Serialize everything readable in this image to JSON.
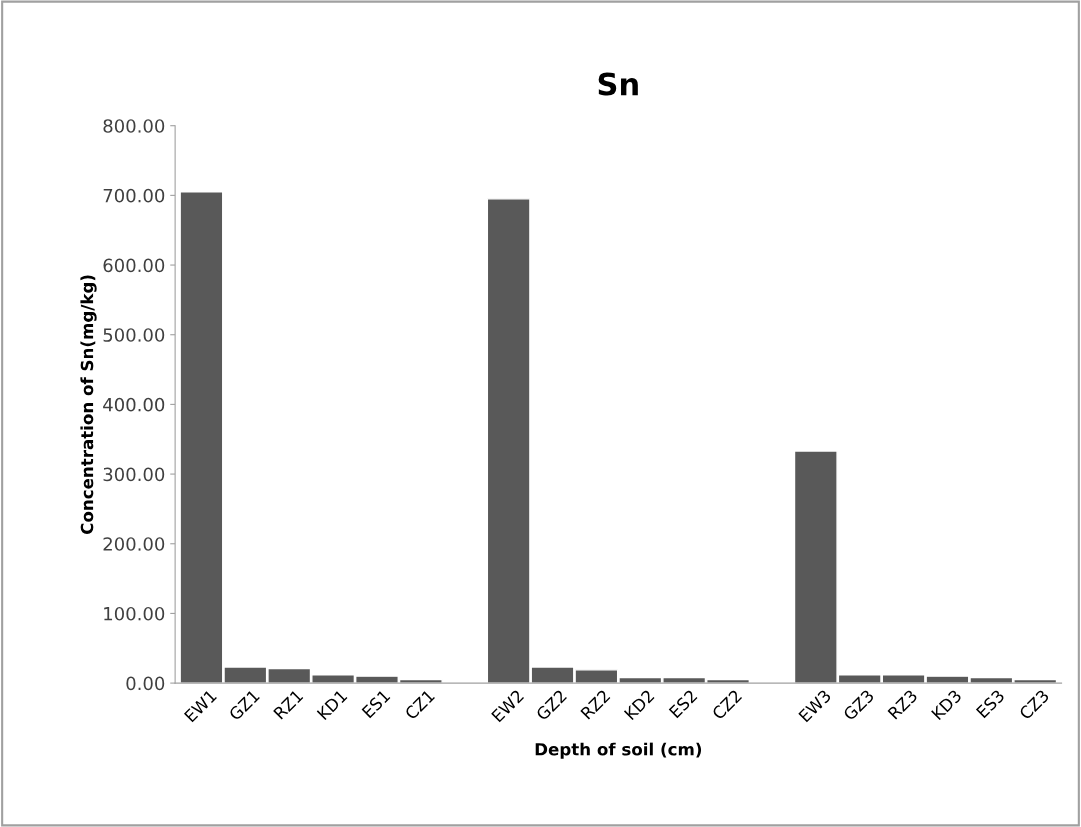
{
  "chart_data": {
    "type": "bar",
    "title": "Sn",
    "xlabel": "Depth of soil (cm)",
    "ylabel": "Concentration of Sn(mg/kg)",
    "categories": [
      "EW1",
      "GZ1",
      "RZ1",
      "KD1",
      "ES1",
      "CZ1",
      null,
      "EW2",
      "GZ2",
      "RZ2",
      "KD2",
      "ES2",
      "CZ2",
      null,
      "EW3",
      "GZ3",
      "RZ3",
      "KD3",
      "ES3",
      "CZ3"
    ],
    "values": [
      705,
      23,
      21,
      12,
      10,
      5,
      null,
      695,
      23,
      19,
      8,
      8,
      5,
      null,
      333,
      12,
      12,
      10,
      8,
      5
    ],
    "color": "#595959",
    "ylim": [
      0,
      800
    ],
    "yticks": [
      {
        "value": 0,
        "label": "0.00"
      },
      {
        "value": 100,
        "label": "100.00"
      },
      {
        "value": 200,
        "label": "200.00"
      },
      {
        "value": 300,
        "label": "300.00"
      },
      {
        "value": 400,
        "label": "400.00"
      },
      {
        "value": 500,
        "label": "500.00"
      },
      {
        "value": 600,
        "label": "600.00"
      },
      {
        "value": 700,
        "label": "700.00"
      },
      {
        "value": 800,
        "label": "800.00"
      }
    ],
    "grid": false,
    "legend": false
  }
}
